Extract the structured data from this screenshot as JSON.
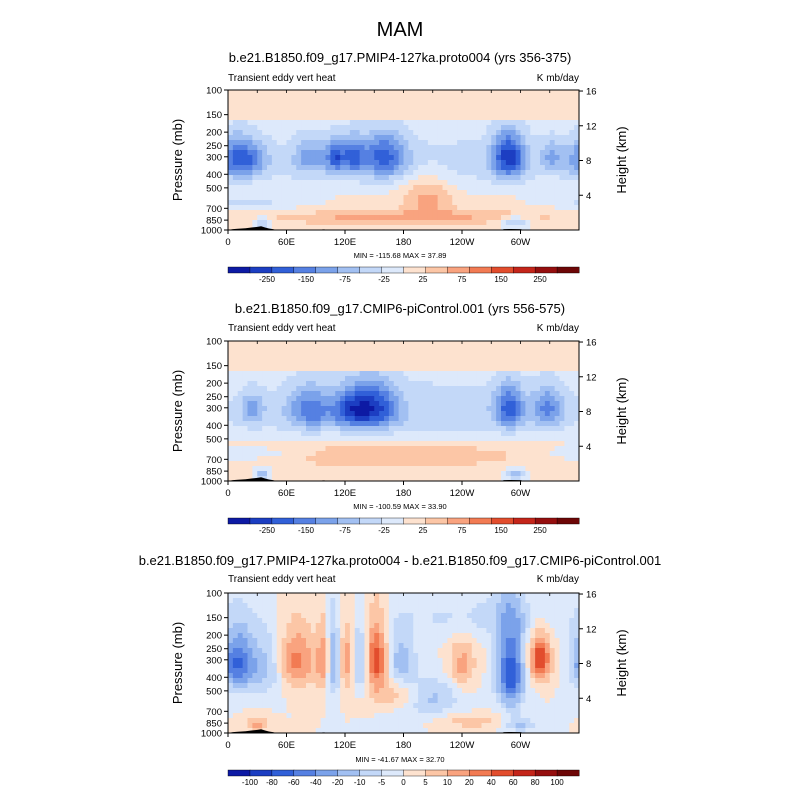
{
  "figure_title": "MAM",
  "colors": {
    "positive": [
      "#fde2cf",
      "#fcc6a6",
      "#f9a37f",
      "#f27b53",
      "#e24d2d",
      "#c4251a",
      "#950e0e",
      "#6d0606"
    ],
    "negative": [
      "#dde9fb",
      "#c3d8f8",
      "#a2c0f2",
      "#7ba2ea",
      "#5580e2",
      "#3160d8",
      "#1c3ec2",
      "#0d1aa4"
    ],
    "terrain": "#000000"
  },
  "chart_data": [
    {
      "type": "heatmap",
      "title": "b.e21.B1850.f09_g17.PMIP4-127ka.proto004 (yrs 356-375)",
      "left_label": "Transient eddy vert heat",
      "right_label": "K mb/day",
      "ylabel": "Pressure (mb)",
      "ylabel_right": "Height (km)",
      "y_ticks": [
        "100",
        "150",
        "200",
        "250",
        "300",
        "400",
        "500",
        "700",
        "850",
        "1000"
      ],
      "y_tick_values": [
        100,
        150,
        200,
        250,
        300,
        400,
        500,
        700,
        850,
        1000
      ],
      "height_ticks": [
        "16",
        "12",
        "8",
        "4"
      ],
      "height_tick_values": [
        16,
        12,
        8,
        4
      ],
      "x_ticks": [
        "0",
        "60E",
        "120E",
        "180",
        "120W",
        "60W"
      ],
      "x_tick_values": [
        0,
        60,
        120,
        180,
        240,
        300
      ],
      "xlim": [
        0,
        360
      ],
      "stats": "MIN = -115.68   MAX =  37.89",
      "colorbar_labels": [
        "-250",
        "-150",
        "-75",
        "-25",
        "25",
        "75",
        "150",
        "250"
      ],
      "base": 0.3,
      "features": [
        {
          "lon": 10,
          "p": 310,
          "dlon": 14,
          "dp": 75,
          "v": -4.5
        },
        {
          "lon": 30,
          "p": 320,
          "dlon": 10,
          "dp": 60,
          "v": -1.6
        },
        {
          "lon": 85,
          "p": 300,
          "dlon": 12,
          "dp": 60,
          "v": -2.5
        },
        {
          "lon": 110,
          "p": 300,
          "dlon": 6,
          "dp": 55,
          "v": -4.2
        },
        {
          "lon": 128,
          "p": 300,
          "dlon": 8,
          "dp": 60,
          "v": -4.0
        },
        {
          "lon": 160,
          "p": 300,
          "dlon": 16,
          "dp": 75,
          "v": -4.2
        },
        {
          "lon": 288,
          "p": 300,
          "dlon": 12,
          "dp": 80,
          "v": -5.6
        },
        {
          "lon": 332,
          "p": 300,
          "dlon": 8,
          "dp": 55,
          "v": -2.4
        },
        {
          "lon": 180,
          "p": 330,
          "dlon": 200,
          "dp": 130,
          "v": -1.8
        },
        {
          "lon": 205,
          "p": 560,
          "dlon": 18,
          "dp": 140,
          "v": 2.2
        },
        {
          "lon": 130,
          "p": 820,
          "dlon": 70,
          "dp": 60,
          "v": 1.5
        },
        {
          "lon": 240,
          "p": 800,
          "dlon": 70,
          "dp": 70,
          "v": 1.4
        },
        {
          "lon": 295,
          "p": 880,
          "dlon": 10,
          "dp": 60,
          "v": -2.8
        },
        {
          "lon": 35,
          "p": 900,
          "dlon": 6,
          "dp": 70,
          "v": -3.0
        },
        {
          "lon": 20,
          "p": 640,
          "dlon": 40,
          "dp": 50,
          "v": -1.5
        }
      ]
    },
    {
      "type": "heatmap",
      "title": "b.e21.B1850.f09_g17.CMIP6-piControl.001 (yrs 556-575)",
      "left_label": "Transient eddy vert heat",
      "right_label": "K mb/day",
      "ylabel": "Pressure (mb)",
      "ylabel_right": "Height (km)",
      "y_ticks": [
        "100",
        "150",
        "200",
        "250",
        "300",
        "400",
        "500",
        "700",
        "850",
        "1000"
      ],
      "y_tick_values": [
        100,
        150,
        200,
        250,
        300,
        400,
        500,
        700,
        850,
        1000
      ],
      "height_ticks": [
        "16",
        "12",
        "8",
        "4"
      ],
      "height_tick_values": [
        16,
        12,
        8,
        4
      ],
      "x_ticks": [
        "0",
        "60E",
        "120E",
        "180",
        "120W",
        "60W"
      ],
      "x_tick_values": [
        0,
        60,
        120,
        180,
        240,
        300
      ],
      "xlim": [
        0,
        360
      ],
      "stats": "MIN = -100.59   MAX =  33.90",
      "colorbar_labels": [
        "-250",
        "-150",
        "-75",
        "-25",
        "25",
        "75",
        "150",
        "250"
      ],
      "base": 0.3,
      "features": [
        {
          "lon": 25,
          "p": 310,
          "dlon": 8,
          "dp": 55,
          "v": -2.6
        },
        {
          "lon": 85,
          "p": 310,
          "dlon": 16,
          "dp": 75,
          "v": -3.4
        },
        {
          "lon": 125,
          "p": 310,
          "dlon": 12,
          "dp": 70,
          "v": -3.6
        },
        {
          "lon": 150,
          "p": 300,
          "dlon": 16,
          "dp": 80,
          "v": -5.0
        },
        {
          "lon": 288,
          "p": 300,
          "dlon": 10,
          "dp": 75,
          "v": -4.4
        },
        {
          "lon": 328,
          "p": 300,
          "dlon": 12,
          "dp": 70,
          "v": -3.2
        },
        {
          "lon": 180,
          "p": 330,
          "dlon": 200,
          "dp": 140,
          "v": -2.0
        },
        {
          "lon": 170,
          "p": 640,
          "dlon": 110,
          "dp": 110,
          "v": 1.6
        },
        {
          "lon": 295,
          "p": 890,
          "dlon": 8,
          "dp": 60,
          "v": -2.8
        },
        {
          "lon": 35,
          "p": 900,
          "dlon": 6,
          "dp": 70,
          "v": -3.0
        },
        {
          "lon": 20,
          "p": 640,
          "dlon": 40,
          "dp": 50,
          "v": -1.5
        }
      ]
    },
    {
      "type": "heatmap",
      "title": "b.e21.B1850.f09_g17.PMIP4-127ka.proto004 - b.e21.B1850.f09_g17.CMIP6-piControl.001",
      "left_label": "Transient eddy vert heat",
      "right_label": "K mb/day",
      "ylabel": "Pressure (mb)",
      "ylabel_right": "Height (km)",
      "y_ticks": [
        "100",
        "150",
        "200",
        "250",
        "300",
        "400",
        "500",
        "700",
        "850",
        "1000"
      ],
      "y_tick_values": [
        100,
        150,
        200,
        250,
        300,
        400,
        500,
        700,
        850,
        1000
      ],
      "height_ticks": [
        "16",
        "12",
        "8",
        "4"
      ],
      "height_tick_values": [
        16,
        12,
        8,
        4
      ],
      "x_ticks": [
        "0",
        "60E",
        "120E",
        "180",
        "120W",
        "60W"
      ],
      "x_tick_values": [
        0,
        60,
        120,
        180,
        240,
        300
      ],
      "xlim": [
        0,
        360
      ],
      "stats": "MIN = -41.67   MAX =  32.70",
      "colorbar_labels": [
        "-100",
        "-80",
        "-60",
        "-40",
        "-20",
        "-10",
        "-5",
        "0",
        "5",
        "10",
        "20",
        "40",
        "60",
        "80",
        "100"
      ],
      "base": 0.0,
      "features": [
        {
          "lon": 10,
          "p": 320,
          "dlon": 12,
          "dp": 110,
          "v": -5.2
        },
        {
          "lon": 40,
          "p": 340,
          "dlon": 12,
          "dp": 120,
          "v": -2.4
        },
        {
          "lon": 70,
          "p": 310,
          "dlon": 14,
          "dp": 110,
          "v": 3.4
        },
        {
          "lon": 98,
          "p": 310,
          "dlon": 5,
          "dp": 120,
          "v": 2.8
        },
        {
          "lon": 108,
          "p": 320,
          "dlon": 5,
          "dp": 140,
          "v": -3.6
        },
        {
          "lon": 122,
          "p": 310,
          "dlon": 6,
          "dp": 120,
          "v": 2.8
        },
        {
          "lon": 135,
          "p": 320,
          "dlon": 6,
          "dp": 120,
          "v": -3.0
        },
        {
          "lon": 152,
          "p": 300,
          "dlon": 8,
          "dp": 120,
          "v": 4.6
        },
        {
          "lon": 178,
          "p": 300,
          "dlon": 10,
          "dp": 90,
          "v": -2.6
        },
        {
          "lon": 205,
          "p": 560,
          "dlon": 22,
          "dp": 120,
          "v": -2.6
        },
        {
          "lon": 175,
          "p": 540,
          "dlon": 20,
          "dp": 80,
          "v": 2.2
        },
        {
          "lon": 240,
          "p": 330,
          "dlon": 10,
          "dp": 100,
          "v": 2.4
        },
        {
          "lon": 290,
          "p": 380,
          "dlon": 10,
          "dp": 180,
          "v": -5.8
        },
        {
          "lon": 320,
          "p": 300,
          "dlon": 8,
          "dp": 80,
          "v": 5.0
        },
        {
          "lon": 260,
          "p": 150,
          "dlon": 60,
          "dp": 40,
          "v": -1.4
        },
        {
          "lon": 250,
          "p": 820,
          "dlon": 20,
          "dp": 60,
          "v": 2.0
        },
        {
          "lon": 300,
          "p": 870,
          "dlon": 10,
          "dp": 70,
          "v": -2.6
        },
        {
          "lon": 30,
          "p": 880,
          "dlon": 8,
          "dp": 80,
          "v": 2.4
        }
      ]
    }
  ]
}
